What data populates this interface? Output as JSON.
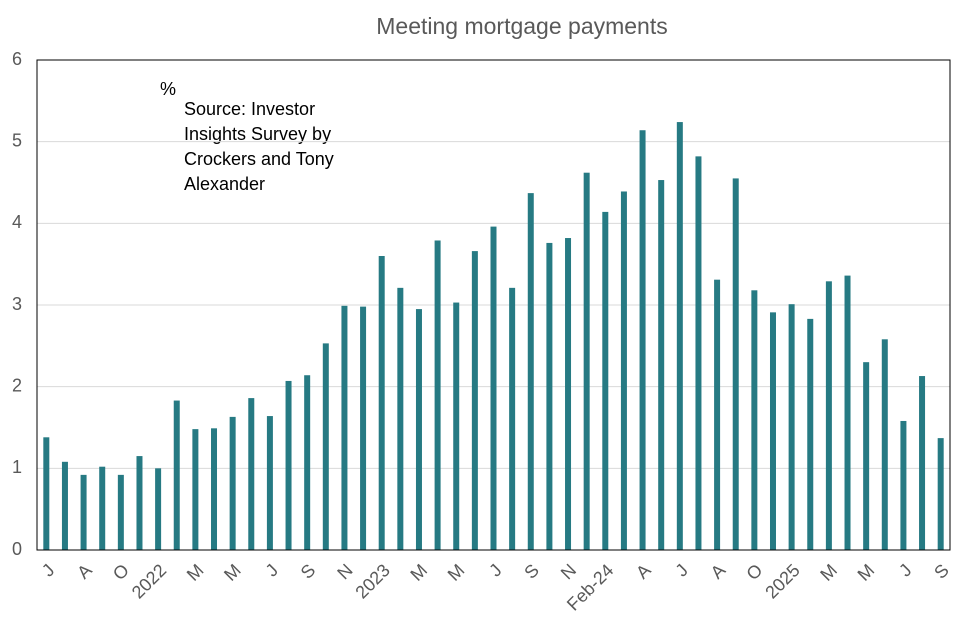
{
  "chart_data": {
    "type": "bar",
    "title": "Meeting mortgage payments",
    "unit_label": "%",
    "annotation": [
      "Source: Investor",
      "Insights Survey by",
      "Crockers and Tony",
      "Alexander"
    ],
    "categories": [
      "J",
      null,
      "A",
      null,
      "O",
      null,
      "2022",
      null,
      "M",
      null,
      "M",
      null,
      "J",
      null,
      "S",
      null,
      "N",
      null,
      "2023",
      null,
      "M",
      null,
      "M",
      null,
      "J",
      null,
      "S",
      null,
      "N",
      null,
      "Feb-24",
      null,
      "A",
      null,
      "J",
      null,
      "A",
      null,
      "O",
      null,
      "2025",
      null,
      "M",
      null,
      "M",
      null,
      "J",
      null,
      "S"
    ],
    "values": [
      1.38,
      1.08,
      0.92,
      1.02,
      0.92,
      1.15,
      1.0,
      1.83,
      1.48,
      1.49,
      1.63,
      1.86,
      1.64,
      2.07,
      2.14,
      2.53,
      2.99,
      2.98,
      3.6,
      3.21,
      2.95,
      3.79,
      3.03,
      3.66,
      3.96,
      3.21,
      4.37,
      3.76,
      3.82,
      4.62,
      4.14,
      4.39,
      5.14,
      4.53,
      5.24,
      4.82,
      3.31,
      4.55,
      3.18,
      2.91,
      3.01,
      2.83,
      3.29,
      3.36,
      2.3,
      2.58,
      1.58,
      2.13,
      1.37
    ],
    "color": "#267a83",
    "ylim": [
      0,
      6
    ],
    "yticks": [
      0,
      1,
      2,
      3,
      4,
      5,
      6
    ],
    "grid": true
  }
}
